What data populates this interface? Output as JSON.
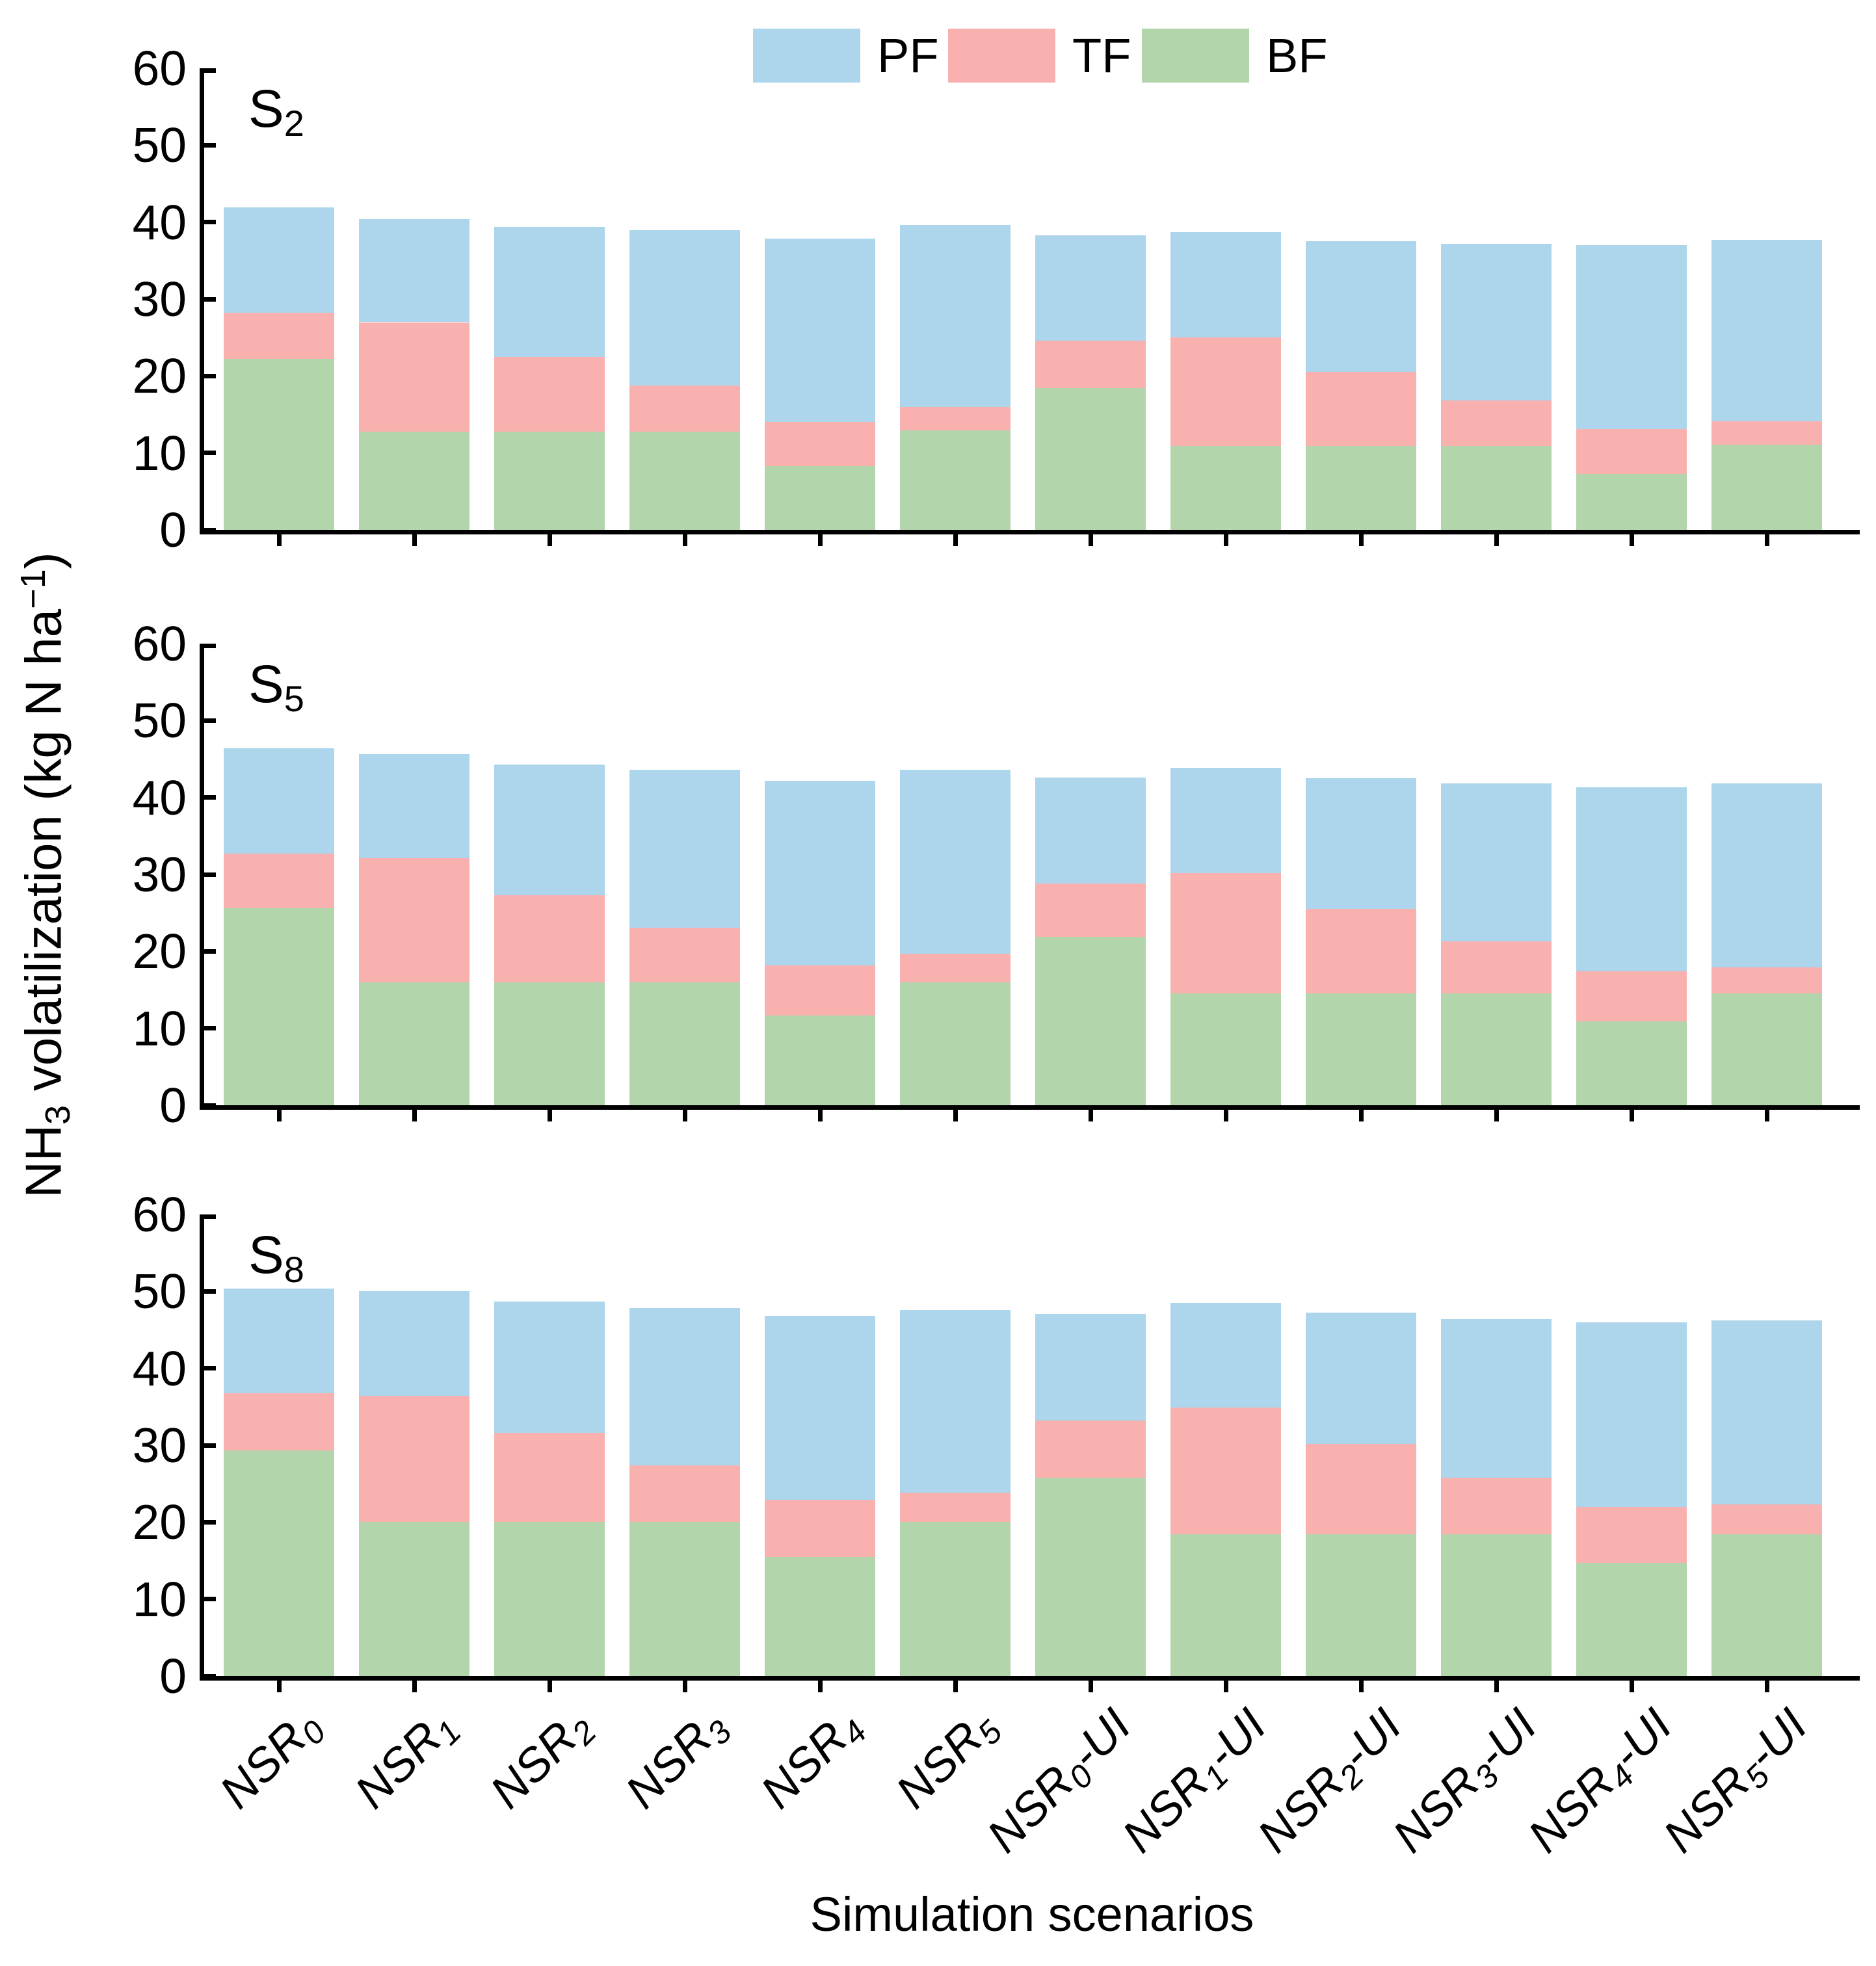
{
  "figure": {
    "xlabel": "Simulation scenarios",
    "ylabel_parts": [
      {
        "t": "NH"
      },
      {
        "t": "3",
        "style": "sub"
      },
      {
        "t": " volatilization (kg N ha"
      },
      {
        "t": "−1",
        "style": "sup"
      },
      {
        "t": ")"
      }
    ]
  },
  "legend": {
    "items": [
      {
        "label": "PF",
        "color": "#ADD5EB"
      },
      {
        "label": "TF",
        "color": "#F9B1AF"
      },
      {
        "label": "BF",
        "color": "#B2D5AC"
      }
    ]
  },
  "chart_data": {
    "type": "bar",
    "stacked": true,
    "grid": false,
    "legend_position": "top-center",
    "ylim": [
      0,
      60
    ],
    "yticks": [
      0,
      10,
      20,
      30,
      40,
      50,
      60
    ],
    "xlabel": "Simulation scenarios",
    "ylabel": "NH3 volatilization (kg N ha-1)",
    "categories": [
      {
        "pre": "NSR",
        "sub": "0",
        "post": ""
      },
      {
        "pre": "NSR",
        "sub": "1",
        "post": ""
      },
      {
        "pre": "NSR",
        "sub": "2",
        "post": ""
      },
      {
        "pre": "NSR",
        "sub": "3",
        "post": ""
      },
      {
        "pre": "NSR",
        "sub": "4",
        "post": ""
      },
      {
        "pre": "NSR",
        "sub": "5",
        "post": ""
      },
      {
        "pre": "NSR",
        "sub": "0",
        "post": "-UI"
      },
      {
        "pre": "NSR",
        "sub": "1",
        "post": "-UI"
      },
      {
        "pre": "NSR",
        "sub": "2",
        "post": "-UI"
      },
      {
        "pre": "NSR",
        "sub": "3",
        "post": "-UI"
      },
      {
        "pre": "NSR",
        "sub": "4",
        "post": "-UI"
      },
      {
        "pre": "NSR",
        "sub": "5",
        "post": "-UI"
      }
    ],
    "panels": [
      {
        "label": {
          "pre": "S",
          "sub": "2"
        },
        "series": [
          {
            "name": "BF",
            "color": "#B2D5AC",
            "values": [
              22.2,
              12.8,
              12.8,
              12.8,
              8.3,
              12.9,
              18.4,
              10.9,
              10.9,
              10.9,
              7.3,
              11.1
            ]
          },
          {
            "name": "TF",
            "color": "#F9B1AF",
            "values": [
              6.0,
              14.2,
              9.7,
              6.0,
              5.7,
              3.1,
              6.2,
              14.1,
              9.6,
              5.9,
              5.8,
              3.0
            ]
          },
          {
            "name": "PF",
            "color": "#ADD5EB",
            "values": [
              13.7,
              13.4,
              16.9,
              20.2,
              23.9,
              23.6,
              13.7,
              13.7,
              17.0,
              20.4,
              23.9,
              23.6
            ]
          }
        ]
      },
      {
        "label": {
          "pre": "S",
          "sub": "5"
        },
        "series": [
          {
            "name": "BF",
            "color": "#B2D5AC",
            "values": [
              25.6,
              16.0,
              16.0,
              16.0,
              11.7,
              16.0,
              21.9,
              14.5,
              14.5,
              14.5,
              10.9,
              14.5
            ]
          },
          {
            "name": "TF",
            "color": "#F9B1AF",
            "values": [
              7.1,
              16.1,
              11.3,
              7.1,
              6.5,
              3.7,
              6.9,
              15.7,
              11.0,
              6.8,
              6.5,
              3.4
            ]
          },
          {
            "name": "PF",
            "color": "#ADD5EB",
            "values": [
              13.7,
              13.5,
              17.0,
              20.5,
              24.0,
              23.9,
              13.8,
              13.7,
              17.0,
              20.5,
              23.9,
              23.9
            ]
          }
        ]
      },
      {
        "label": {
          "pre": "S",
          "sub": "8"
        },
        "series": [
          {
            "name": "BF",
            "color": "#B2D5AC",
            "values": [
              29.3,
              20.0,
              20.0,
              20.0,
              15.5,
              20.0,
              25.8,
              18.4,
              18.4,
              18.4,
              14.7,
              18.4
            ]
          },
          {
            "name": "TF",
            "color": "#F9B1AF",
            "values": [
              7.5,
              16.4,
              11.6,
              7.4,
              7.4,
              3.8,
              7.4,
              16.5,
              11.8,
              7.4,
              7.3,
              3.9
            ]
          },
          {
            "name": "PF",
            "color": "#ADD5EB",
            "values": [
              13.6,
              13.6,
              17.1,
              20.4,
              23.9,
              23.8,
              13.9,
              13.6,
              17.0,
              20.6,
              24.0,
              23.9
            ]
          }
        ]
      }
    ]
  }
}
